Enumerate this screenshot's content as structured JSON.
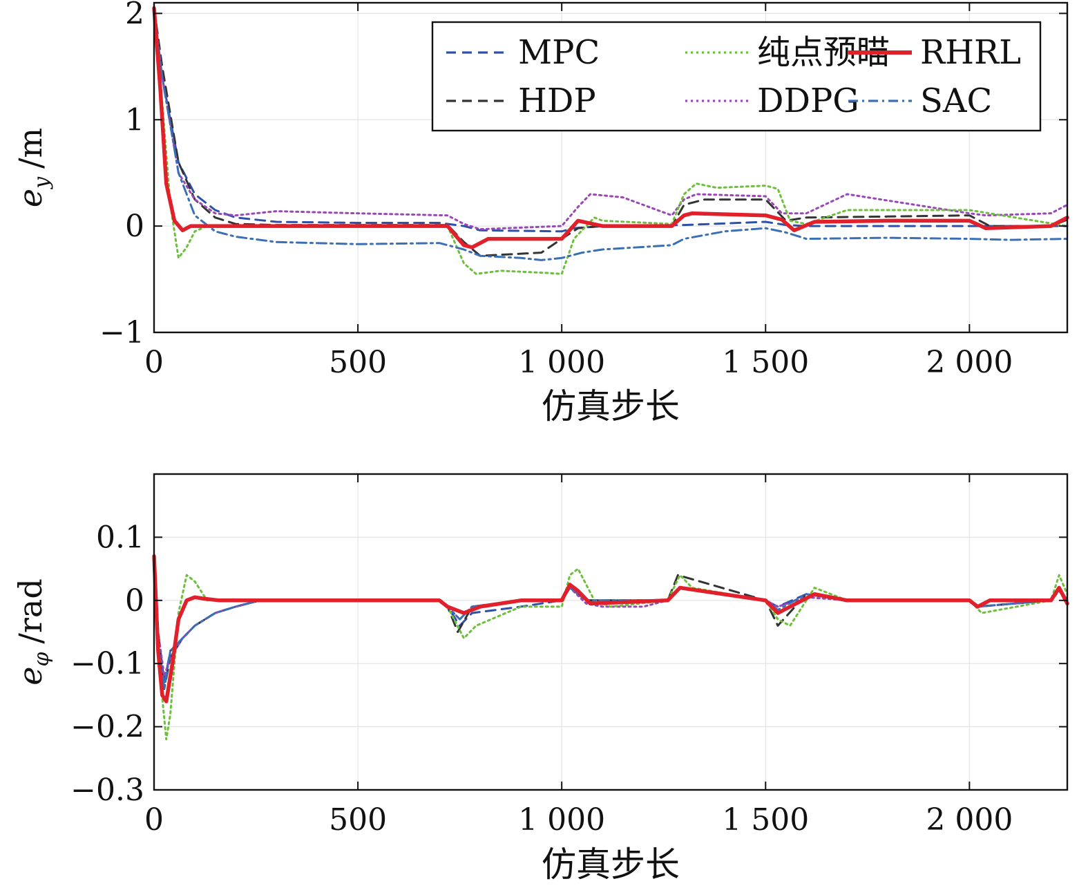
{
  "colors": {
    "MPC": "#2f50a8",
    "HDP": "#333333",
    "DDPG": "#9a46b8",
    "纯点预瞄": "#6cbf3a",
    "RHRL": "#e0202a",
    "SAC": "#3a6fb6"
  },
  "chart_data": [
    {
      "type": "line",
      "title": "",
      "xlabel": "仿真步长",
      "ylabel_var": "e",
      "ylabel_sub": "y",
      "ylabel_unit": "/m",
      "xlim": [
        0,
        2240
      ],
      "ylim": [
        -1,
        2.1
      ],
      "xticks": [
        0,
        500,
        1000,
        1500,
        2000
      ],
      "xtick_labels": [
        "0",
        "500",
        "1 000",
        "1 500",
        "2 000"
      ],
      "yticks": [
        -1,
        0,
        1,
        2
      ],
      "ytick_labels": [
        "−1",
        "0",
        "1",
        "2"
      ],
      "grid": true,
      "legend": {
        "placement": "top-right",
        "columns": 3,
        "entries": [
          "MPC",
          "纯点预瞄",
          "RHRL",
          "HDP",
          "DDPG",
          "SAC"
        ]
      },
      "series": [
        {
          "name": "MPC",
          "style": "dashed",
          "x": [
            0,
            20,
            60,
            100,
            150,
            200,
            300,
            500,
            700,
            760,
            800,
            1000,
            1030,
            1100,
            1300,
            1500,
            1550,
            1600,
            1800,
            2000,
            2240
          ],
          "y": [
            2.0,
            1.4,
            0.6,
            0.3,
            0.15,
            0.08,
            0.04,
            0.03,
            0.03,
            0.0,
            -0.04,
            -0.05,
            -0.02,
            0.0,
            0.01,
            0.04,
            0.01,
            0.0,
            0.0,
            0.0,
            0.0
          ]
        },
        {
          "name": "HDP",
          "style": "dashed",
          "x": [
            0,
            20,
            60,
            100,
            150,
            200,
            300,
            500,
            720,
            760,
            800,
            950,
            1000,
            1040,
            1100,
            1270,
            1300,
            1350,
            1500,
            1550,
            1600,
            1800,
            2000,
            2050,
            2200,
            2240
          ],
          "y": [
            2.05,
            1.5,
            0.6,
            0.25,
            0.08,
            0.02,
            0.01,
            0.01,
            0.01,
            -0.15,
            -0.28,
            -0.25,
            -0.12,
            -0.02,
            0.0,
            0.0,
            0.2,
            0.25,
            0.25,
            0.05,
            0.08,
            0.09,
            0.1,
            0.0,
            0.0,
            0.06
          ]
        },
        {
          "name": "DDPG",
          "style": "dotted",
          "x": [
            0,
            20,
            60,
            100,
            150,
            200,
            300,
            500,
            720,
            760,
            800,
            1000,
            1040,
            1070,
            1150,
            1270,
            1300,
            1330,
            1500,
            1540,
            1600,
            1700,
            2000,
            2040,
            2200,
            2240
          ],
          "y": [
            2.0,
            1.4,
            0.5,
            0.25,
            0.12,
            0.1,
            0.14,
            0.12,
            0.1,
            0.02,
            -0.03,
            0.0,
            0.18,
            0.3,
            0.27,
            0.1,
            0.25,
            0.3,
            0.28,
            0.12,
            0.12,
            0.3,
            0.12,
            0.1,
            0.12,
            0.2
          ]
        },
        {
          "name": "纯点预瞄",
          "style": "dotted",
          "x": [
            0,
            15,
            40,
            60,
            80,
            100,
            130,
            200,
            500,
            720,
            760,
            790,
            850,
            960,
            1000,
            1030,
            1080,
            1100,
            1270,
            1300,
            1330,
            1380,
            1500,
            1530,
            1560,
            1600,
            1700,
            2000,
            2240
          ],
          "y": [
            2.0,
            1.4,
            0.2,
            -0.3,
            -0.2,
            -0.05,
            0.0,
            0.0,
            0.0,
            0.0,
            -0.35,
            -0.45,
            -0.42,
            -0.44,
            -0.45,
            -0.12,
            0.08,
            0.05,
            0.02,
            0.3,
            0.4,
            0.36,
            0.38,
            0.35,
            0.05,
            0.02,
            0.15,
            0.15,
            0.0
          ]
        },
        {
          "name": "RHRL",
          "style": "solid",
          "x": [
            0,
            15,
            30,
            50,
            70,
            90,
            120,
            200,
            500,
            720,
            760,
            780,
            820,
            900,
            1000,
            1040,
            1100,
            1270,
            1300,
            1320,
            1500,
            1540,
            1570,
            1620,
            1800,
            2000,
            2040,
            2200,
            2240
          ],
          "y": [
            2.05,
            1.3,
            0.4,
            0.05,
            -0.04,
            0.0,
            0.0,
            0.0,
            0.0,
            0.0,
            -0.18,
            -0.2,
            -0.12,
            -0.12,
            -0.12,
            0.05,
            0.0,
            0.0,
            0.1,
            0.12,
            0.1,
            0.06,
            -0.04,
            0.04,
            0.05,
            0.05,
            -0.02,
            0.0,
            0.08
          ]
        },
        {
          "name": "SAC",
          "style": "dashdot",
          "x": [
            0,
            20,
            60,
            100,
            150,
            200,
            300,
            500,
            700,
            760,
            800,
            900,
            950,
            1000,
            1050,
            1100,
            1270,
            1300,
            1400,
            1500,
            1550,
            1600,
            1800,
            2000,
            2100,
            2240
          ],
          "y": [
            2.05,
            1.4,
            0.5,
            0.1,
            -0.05,
            -0.1,
            -0.15,
            -0.17,
            -0.16,
            -0.22,
            -0.28,
            -0.3,
            -0.32,
            -0.3,
            -0.25,
            -0.22,
            -0.18,
            -0.12,
            -0.05,
            -0.02,
            -0.06,
            -0.12,
            -0.11,
            -0.12,
            -0.13,
            -0.12
          ]
        }
      ]
    },
    {
      "type": "line",
      "title": "",
      "xlabel": "仿真步长",
      "ylabel_var": "e",
      "ylabel_sub": "φ",
      "ylabel_unit": "/rad",
      "xlim": [
        0,
        2240
      ],
      "ylim": [
        -0.3,
        0.2
      ],
      "xticks": [
        0,
        500,
        1000,
        1500,
        2000
      ],
      "xtick_labels": [
        "0",
        "500",
        "1 000",
        "1 500",
        "2 000"
      ],
      "yticks": [
        -0.3,
        -0.2,
        -0.1,
        0,
        0.1
      ],
      "ytick_labels": [
        "−0.3",
        "−0.2",
        "−0.1",
        "0",
        "0.1"
      ],
      "grid": true,
      "series": [
        {
          "name": "MPC",
          "style": "dashed",
          "x": [
            0,
            10,
            25,
            40,
            70,
            100,
            150,
            200,
            260,
            700,
            720,
            750,
            780,
            900,
            1000,
            1020,
            1060,
            1260,
            1290,
            1500,
            1530,
            1600,
            1700,
            2000,
            2020,
            2200,
            2220,
            2240
          ],
          "y": [
            0.07,
            -0.05,
            -0.13,
            -0.08,
            -0.06,
            -0.04,
            -0.02,
            -0.01,
            0.0,
            0.0,
            -0.01,
            -0.04,
            -0.02,
            -0.01,
            0.0,
            0.02,
            0.0,
            0.0,
            0.02,
            0.0,
            -0.01,
            0.01,
            0.0,
            0.0,
            -0.01,
            0.0,
            0.02,
            0.0
          ]
        },
        {
          "name": "HDP",
          "style": "dashed",
          "x": [
            0,
            10,
            25,
            40,
            70,
            100,
            150,
            200,
            260,
            700,
            720,
            745,
            780,
            900,
            1000,
            1020,
            1060,
            1260,
            1285,
            1500,
            1530,
            1600,
            1700,
            2000,
            2020,
            2200,
            2220,
            2240
          ],
          "y": [
            0.07,
            -0.05,
            -0.14,
            -0.09,
            -0.06,
            -0.04,
            -0.02,
            -0.01,
            0.0,
            0.0,
            -0.01,
            -0.05,
            -0.01,
            0.0,
            0.0,
            0.02,
            0.0,
            0.0,
            0.04,
            0.0,
            -0.04,
            0.01,
            0.0,
            0.0,
            -0.01,
            0.0,
            0.02,
            0.0
          ]
        },
        {
          "name": "DDPG",
          "style": "dotted",
          "x": [
            0,
            10,
            25,
            40,
            70,
            100,
            150,
            200,
            260,
            700,
            720,
            750,
            780,
            900,
            1000,
            1020,
            1060,
            1100,
            1200,
            1260,
            1290,
            1500,
            1530,
            1600,
            1700,
            2000,
            2020,
            2200,
            2220,
            2240
          ],
          "y": [
            0.07,
            -0.05,
            -0.12,
            -0.09,
            -0.06,
            -0.04,
            -0.02,
            -0.01,
            0.0,
            0.0,
            -0.01,
            -0.03,
            -0.01,
            0.0,
            0.0,
            0.02,
            -0.005,
            -0.01,
            -0.01,
            0.0,
            0.02,
            0.0,
            -0.01,
            0.005,
            0.0,
            0.0,
            -0.01,
            0.0,
            0.02,
            0.0
          ]
        },
        {
          "name": "纯点预瞄",
          "style": "dotted",
          "x": [
            0,
            15,
            30,
            40,
            60,
            80,
            100,
            130,
            170,
            220,
            700,
            720,
            760,
            790,
            900,
            1000,
            1020,
            1040,
            1080,
            1120,
            1260,
            1290,
            1320,
            1500,
            1530,
            1560,
            1620,
            1700,
            2000,
            2030,
            2200,
            2220,
            2240
          ],
          "y": [
            0.07,
            -0.12,
            -0.22,
            -0.18,
            -0.02,
            0.04,
            0.03,
            0.0,
            0.0,
            0.0,
            0.0,
            -0.01,
            -0.06,
            -0.04,
            -0.01,
            -0.01,
            0.04,
            0.05,
            0.0,
            -0.01,
            0.0,
            0.04,
            0.02,
            0.0,
            -0.03,
            -0.04,
            0.02,
            0.0,
            0.0,
            -0.02,
            0.0,
            0.04,
            0.01
          ]
        },
        {
          "name": "RHRL",
          "style": "solid",
          "x": [
            0,
            10,
            20,
            30,
            45,
            60,
            80,
            100,
            120,
            160,
            700,
            720,
            760,
            800,
            900,
            1000,
            1020,
            1040,
            1070,
            1260,
            1290,
            1500,
            1530,
            1560,
            1620,
            1700,
            2000,
            2020,
            2050,
            2200,
            2220,
            2240
          ],
          "y": [
            0.07,
            -0.08,
            -0.15,
            -0.16,
            -0.1,
            -0.03,
            0.0,
            0.005,
            0.003,
            0.0,
            0.0,
            -0.01,
            -0.02,
            -0.01,
            0.0,
            0.0,
            0.025,
            0.015,
            -0.005,
            0.0,
            0.02,
            0.0,
            -0.02,
            -0.01,
            0.01,
            0.0,
            0.0,
            -0.01,
            0.0,
            0.0,
            0.02,
            -0.005
          ]
        },
        {
          "name": "SAC",
          "style": "dashdot",
          "x": [
            0,
            10,
            25,
            40,
            70,
            100,
            150,
            200,
            260,
            700,
            720,
            750,
            780,
            900,
            1000,
            1020,
            1060,
            1260,
            1290,
            1500,
            1530,
            1600,
            1700,
            2000,
            2020,
            2200,
            2220,
            2240
          ],
          "y": [
            0.07,
            -0.06,
            -0.14,
            -0.08,
            -0.06,
            -0.04,
            -0.02,
            -0.01,
            0.0,
            0.0,
            -0.01,
            -0.03,
            -0.01,
            0.0,
            0.0,
            0.02,
            0.0,
            0.0,
            0.02,
            0.0,
            -0.015,
            0.01,
            0.0,
            0.0,
            -0.01,
            0.0,
            0.015,
            0.0
          ]
        }
      ]
    }
  ]
}
